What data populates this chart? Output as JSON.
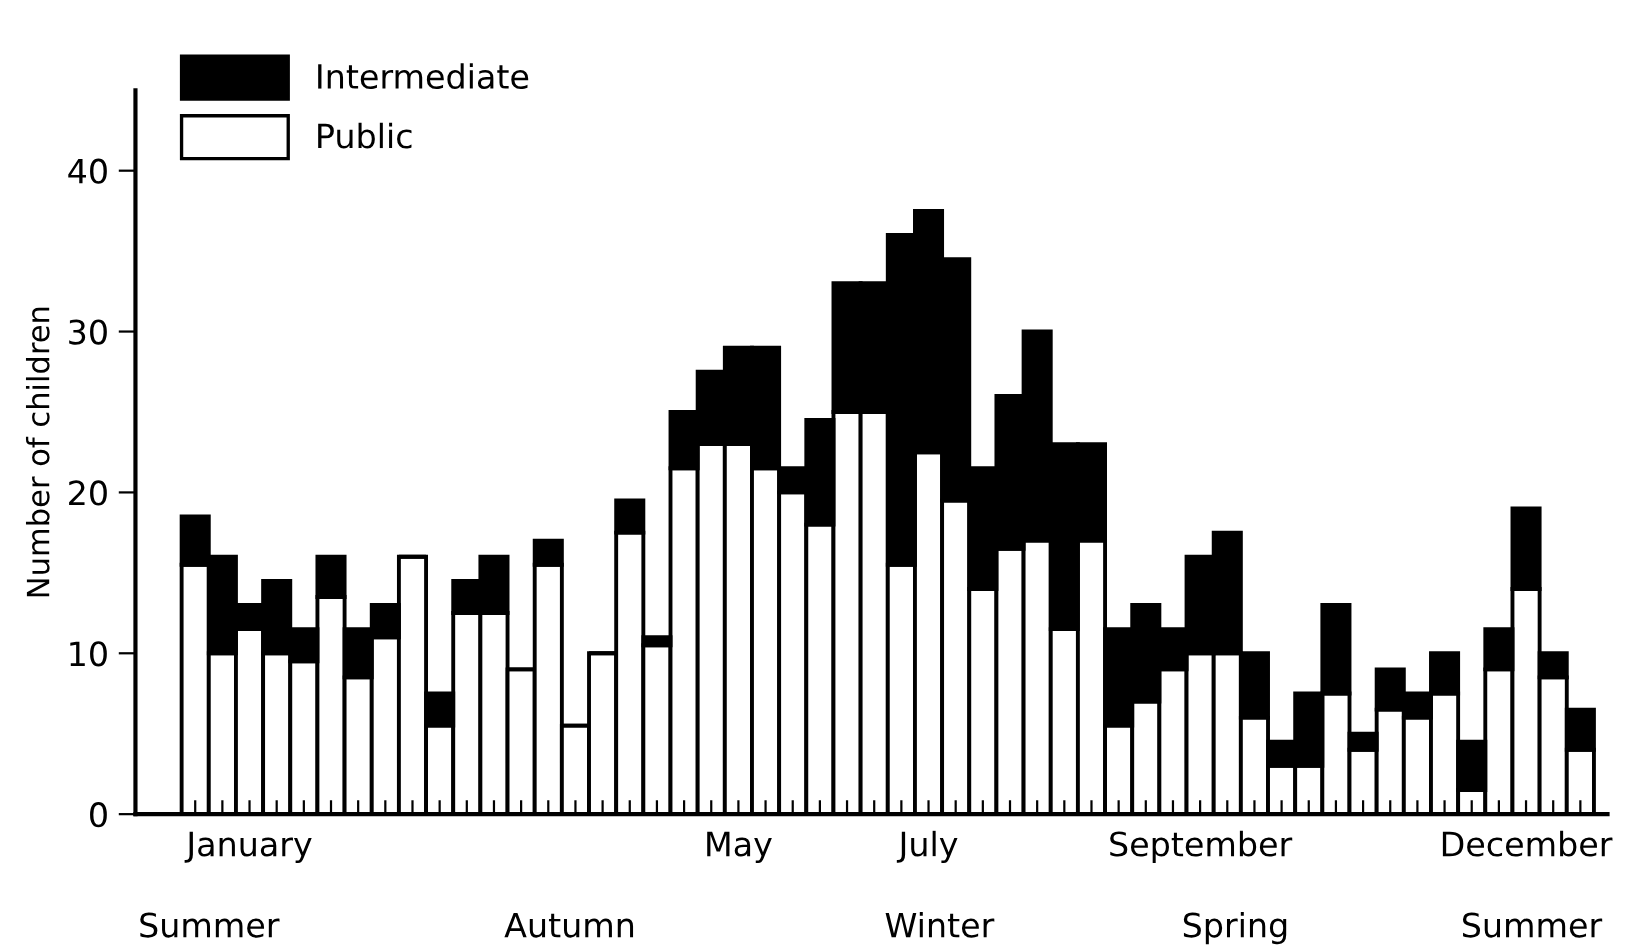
{
  "chart_data": {
    "type": "bar",
    "stacked": true,
    "ylabel": "Number of children",
    "categories": [
      null,
      null,
      "January",
      null,
      null,
      null,
      null,
      null,
      null,
      null,
      null,
      null,
      null,
      null,
      null,
      null,
      null,
      null,
      null,
      null,
      "May",
      null,
      null,
      null,
      null,
      null,
      null,
      "July",
      null,
      null,
      null,
      null,
      null,
      null,
      null,
      null,
      null,
      "September",
      null,
      null,
      null,
      null,
      null,
      null,
      null,
      null,
      null,
      null,
      null,
      "December",
      null,
      null
    ],
    "series": [
      {
        "name": "Public",
        "color": "#ffffff",
        "values": [
          15.5,
          10,
          11.5,
          10,
          9.5,
          13.5,
          8.5,
          11,
          16,
          5.5,
          12.5,
          12.5,
          9,
          15.5,
          5.5,
          10,
          17.5,
          10.5,
          21.5,
          23,
          23,
          21.5,
          20,
          18,
          25,
          25,
          15.5,
          22.5,
          19.5,
          14,
          16.5,
          17,
          11.5,
          17,
          5.5,
          7,
          9,
          10,
          10,
          6,
          3,
          3,
          7.5,
          4,
          6.5,
          6,
          7.5,
          1.5,
          9,
          14,
          8.5,
          4
        ]
      },
      {
        "name": "Intermediate",
        "color": "#000000",
        "values": [
          3,
          6,
          1.5,
          4.5,
          2,
          2.5,
          3,
          2,
          0,
          2,
          2,
          3.5,
          0,
          1.5,
          0,
          0,
          2,
          0.5,
          3.5,
          4.5,
          6,
          7.5,
          1.5,
          6.5,
          8,
          8,
          20.5,
          15,
          15,
          7.5,
          9.5,
          13,
          11.5,
          6,
          6,
          6,
          2.5,
          6,
          7.5,
          4,
          1.5,
          4.5,
          5.5,
          1,
          2.5,
          1.5,
          2.5,
          3,
          2.5,
          5,
          1.5,
          2.5
        ]
      }
    ],
    "ylim": [
      0,
      45
    ],
    "yticks": [
      0,
      10,
      20,
      30,
      40
    ],
    "grid": false,
    "legend": "top left",
    "annotations": [
      "Summer",
      "Autumn",
      "Winter",
      "Spring",
      "Summer"
    ]
  }
}
